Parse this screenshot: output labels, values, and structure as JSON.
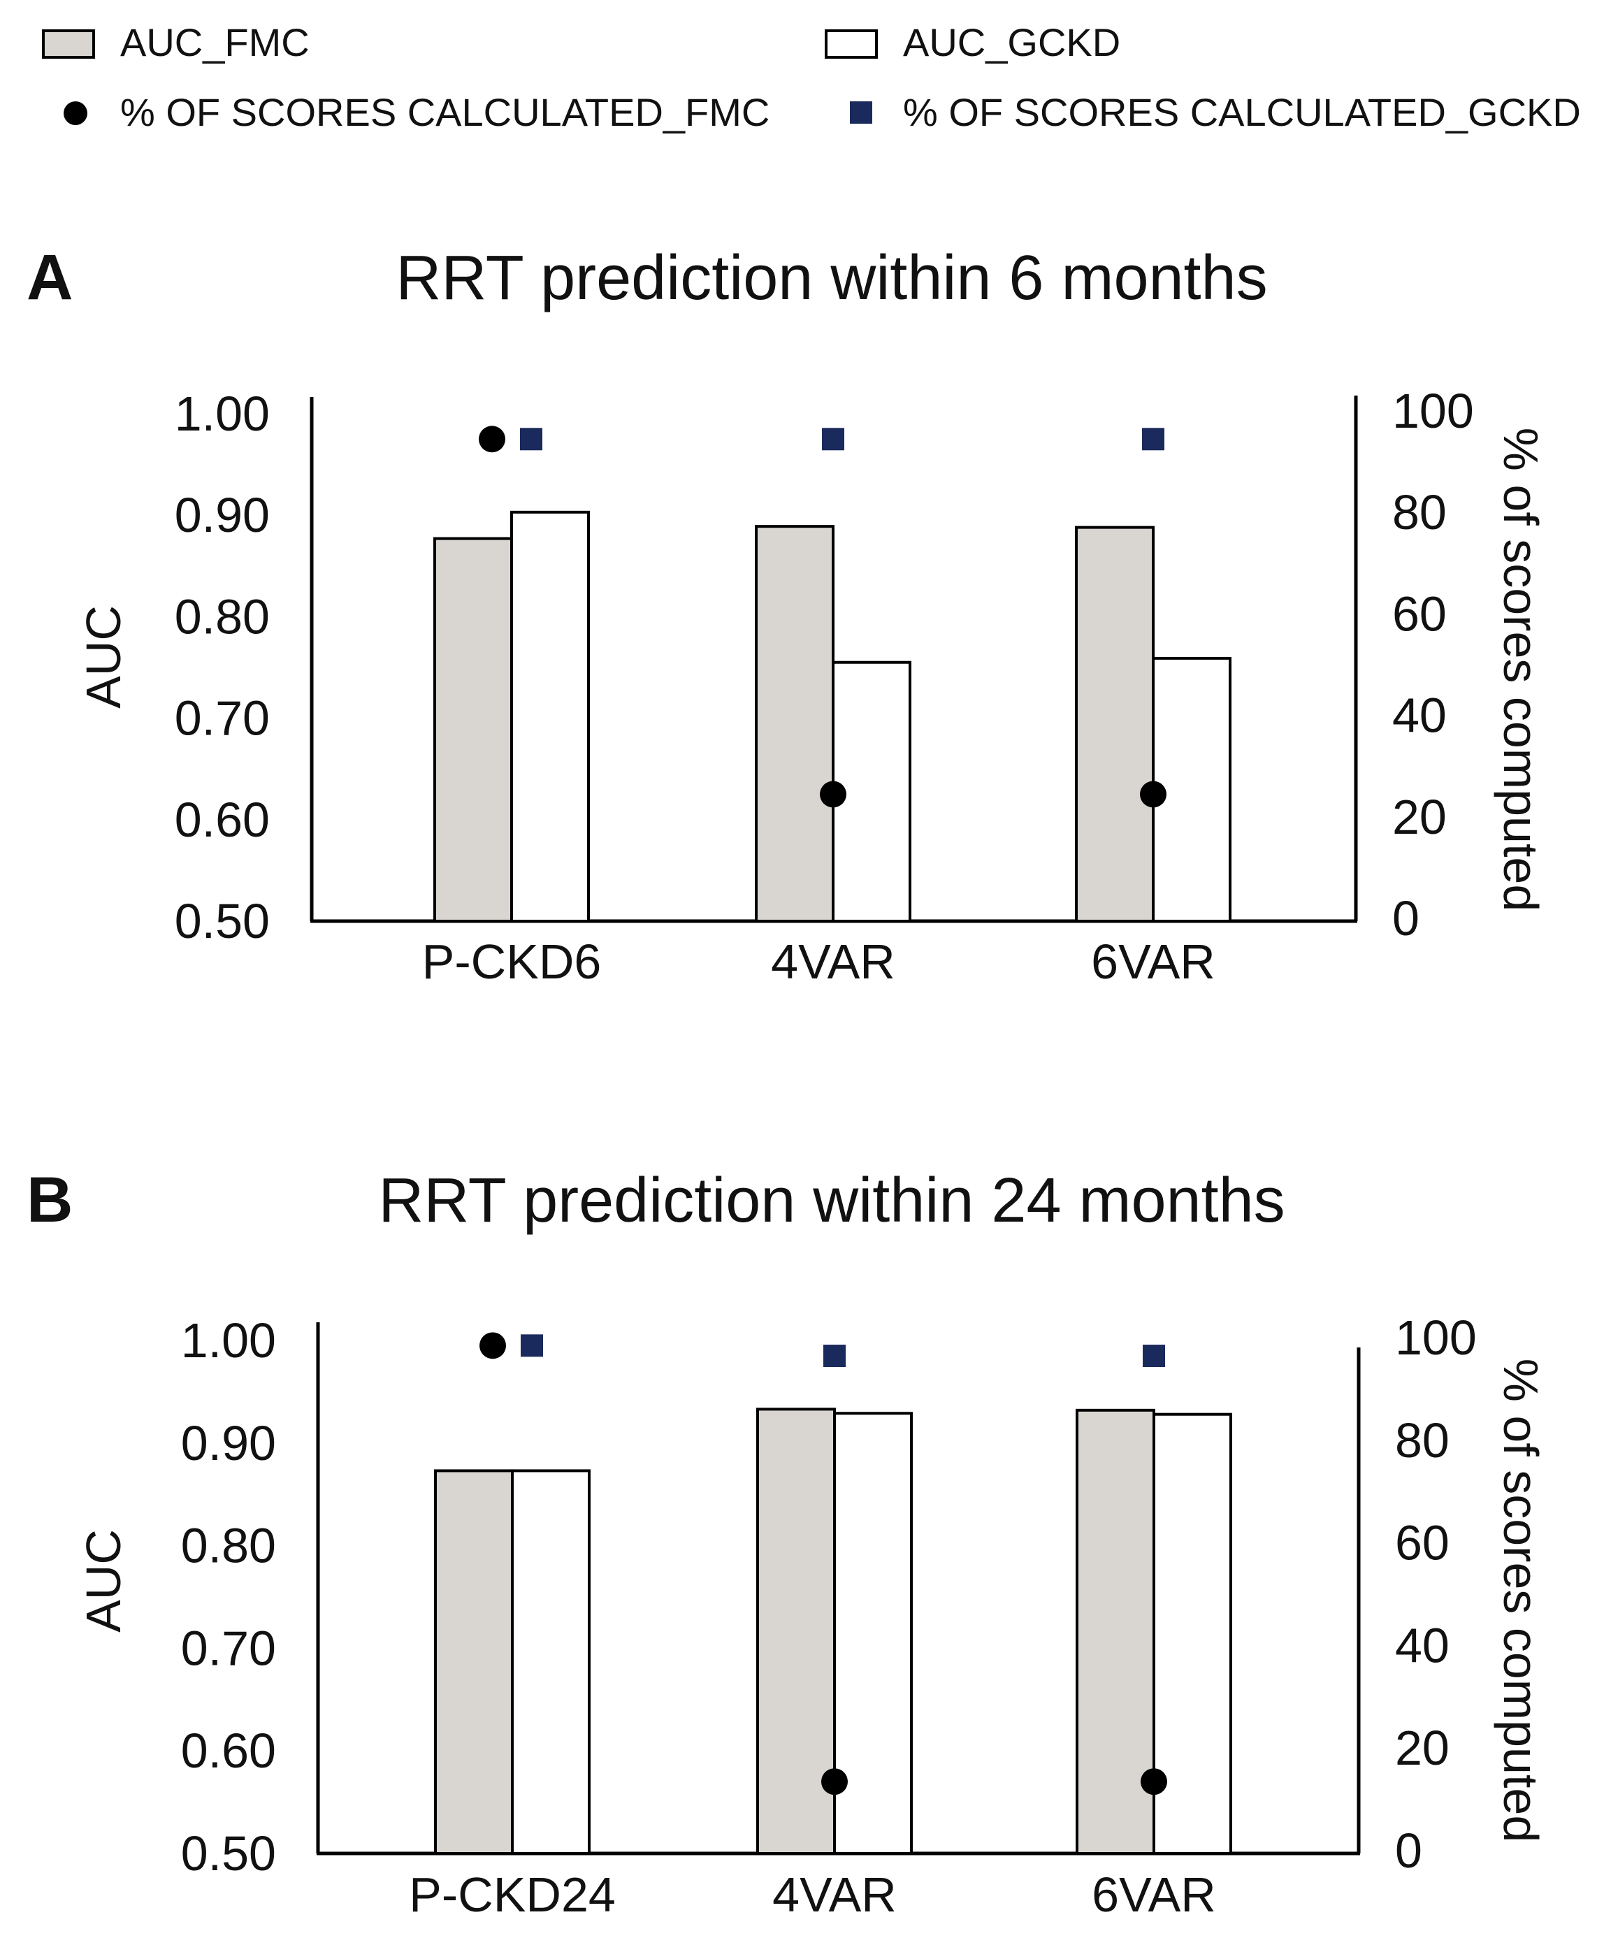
{
  "legend": {
    "auc_fmc": "AUC_FMC",
    "auc_gckd": "AUC_GCKD",
    "pct_fmc": "% OF SCORES CALCULATED_FMC",
    "pct_gckd": "% OF SCORES CALCULATED_GCKD"
  },
  "colors": {
    "fmc_bar": "#d9d6d2",
    "gckd_bar": "#ffffff",
    "fmc_marker": "#000000",
    "gckd_marker": "#1b2a5c",
    "axis": "#000000"
  },
  "chart_data": [
    {
      "panel": "A",
      "type": "bar",
      "title": "RRT prediction within 6 months",
      "categories": [
        "P-CKD6",
        "4VAR",
        "6VAR"
      ],
      "ylabel": "AUC",
      "ylim": [
        0.5,
        1.0
      ],
      "yticks": [
        "1.00",
        "0.90",
        "0.80",
        "0.70",
        "0.60",
        "0.50"
      ],
      "y2label": "% of scores computed",
      "y2lim": [
        0,
        100
      ],
      "y2ticks": [
        "100",
        "80",
        "60",
        "40",
        "20",
        "0"
      ],
      "series": [
        {
          "name": "AUC_FMC",
          "axis": "left",
          "kind": "bar",
          "values": [
            0.877,
            0.889,
            0.888
          ]
        },
        {
          "name": "AUC_GCKD",
          "axis": "left",
          "kind": "bar",
          "values": [
            0.903,
            0.755,
            0.759
          ]
        },
        {
          "name": "% OF SCORES CALCULATED_FMC",
          "axis": "right",
          "kind": "marker",
          "values": [
            95,
            25,
            25
          ]
        },
        {
          "name": "% OF SCORES CALCULATED_GCKD",
          "axis": "right",
          "kind": "marker",
          "values": [
            95,
            95,
            95
          ]
        }
      ]
    },
    {
      "panel": "B",
      "type": "bar",
      "title": "RRT prediction within 24 months",
      "categories": [
        "P-CKD24",
        "4VAR",
        "6VAR"
      ],
      "ylabel": "AUC",
      "ylim": [
        0.5,
        1.0
      ],
      "yticks": [
        "1.00",
        "0.90",
        "0.80",
        "0.70",
        "0.60",
        "0.50"
      ],
      "y2label": "% of scores computed",
      "y2lim": [
        0,
        100
      ],
      "y2ticks": [
        "100",
        "80",
        "60",
        "40",
        "20",
        "0"
      ],
      "series": [
        {
          "name": "AUC_FMC",
          "axis": "left",
          "kind": "bar",
          "values": [
            0.873,
            0.933,
            0.932
          ]
        },
        {
          "name": "AUC_GCKD",
          "axis": "left",
          "kind": "bar",
          "values": [
            0.873,
            0.929,
            0.928
          ]
        },
        {
          "name": "% OF SCORES CALCULATED_FMC",
          "axis": "right",
          "kind": "marker",
          "values": [
            99,
            14,
            14
          ]
        },
        {
          "name": "% OF SCORES CALCULATED_GCKD",
          "axis": "right",
          "kind": "marker",
          "values": [
            99,
            97,
            97
          ]
        }
      ]
    }
  ]
}
